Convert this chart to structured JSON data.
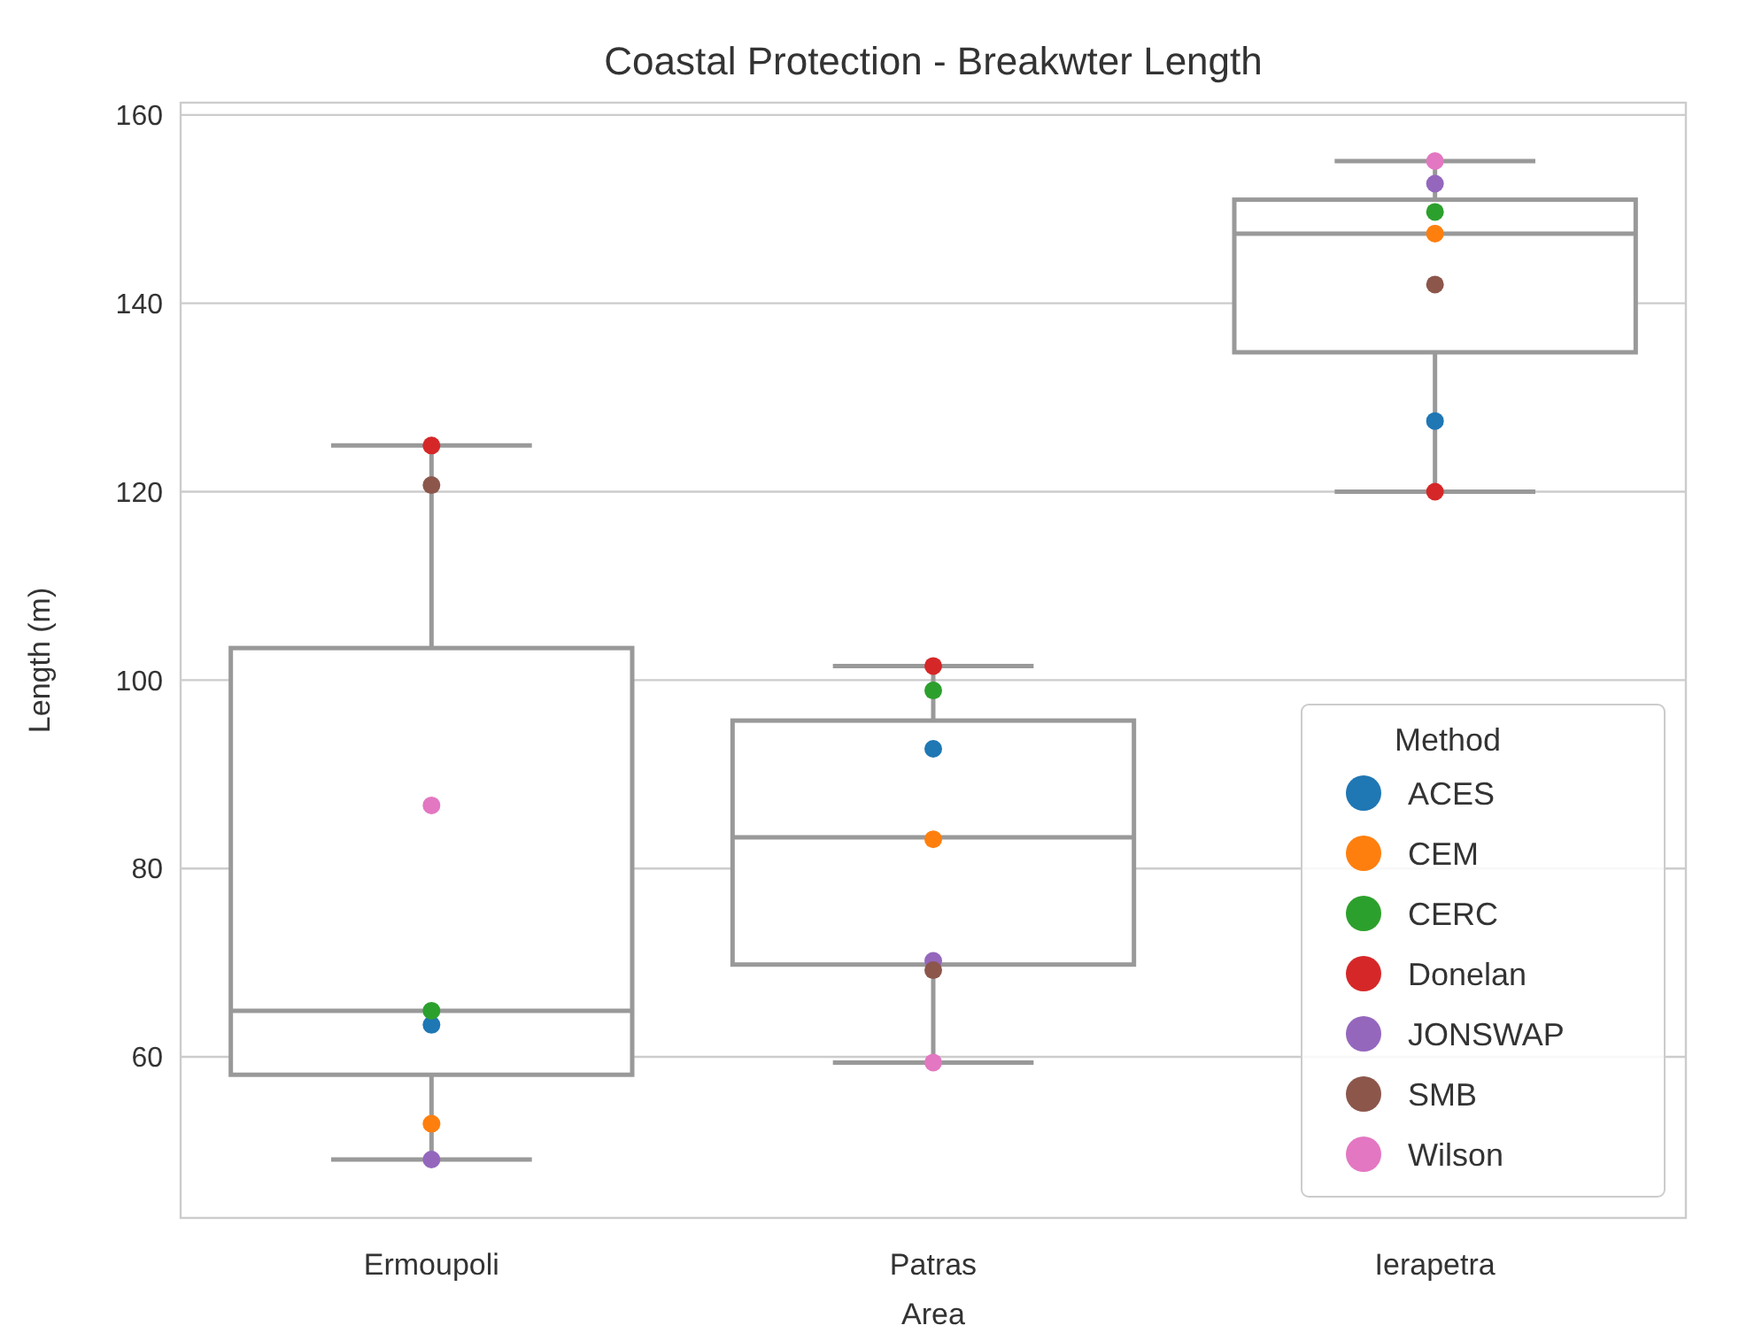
{
  "chart_data": {
    "type": "box",
    "title": "Coastal Protection - Breakwter Length",
    "xlabel": "Area",
    "ylabel": "Length (m)",
    "legend_title": "Method",
    "categories": [
      "Ermoupoli",
      "Patras",
      "Ierapetra"
    ],
    "ylim": [
      42.9,
      161.3
    ],
    "yticks": [
      60,
      80,
      100,
      120,
      140,
      160
    ],
    "grid": "y",
    "legend": "bottom right",
    "marker": "circle",
    "series": [
      {
        "type": "box",
        "color": "#999999",
        "boxes": [
          {
            "low": 49.1,
            "q1": 58.1,
            "median": 64.9,
            "q3": 103.4,
            "high": 124.9
          },
          {
            "low": 59.4,
            "q1": 69.8,
            "median": 83.3,
            "q3": 95.7,
            "high": 101.5
          },
          {
            "low": 120,
            "q1": 134.8,
            "median": 147.4,
            "q3": 151,
            "high": 155.1
          }
        ]
      },
      {
        "type": "scatter",
        "name": "ACES",
        "color": "#1f77b4",
        "x": [
          "Ermoupoli",
          "Patras",
          "Ierapetra"
        ],
        "values": [
          63.4,
          92.7,
          127.5
        ]
      },
      {
        "type": "scatter",
        "name": "CEM",
        "color": "#ff7f0e",
        "x": [
          "Ermoupoli",
          "Patras",
          "Ierapetra"
        ],
        "values": [
          52.9,
          83.1,
          147.4
        ]
      },
      {
        "type": "scatter",
        "name": "CERC",
        "color": "#2ca02c",
        "x": [
          "Ermoupoli",
          "Patras",
          "Ierapetra"
        ],
        "values": [
          64.9,
          98.9,
          149.7
        ]
      },
      {
        "type": "scatter",
        "name": "Donelan",
        "color": "#d62728",
        "x": [
          "Ermoupoli",
          "Patras",
          "Ierapetra"
        ],
        "values": [
          124.9,
          101.5,
          120
        ]
      },
      {
        "type": "scatter",
        "name": "JONSWAP",
        "color": "#9467bd",
        "x": [
          "Ermoupoli",
          "Patras",
          "Ierapetra"
        ],
        "values": [
          49.1,
          70.2,
          152.7
        ]
      },
      {
        "type": "scatter",
        "name": "SMB",
        "color": "#8c564b",
        "x": [
          "Ermoupoli",
          "Patras",
          "Ierapetra"
        ],
        "values": [
          120.7,
          69.2,
          142
        ]
      },
      {
        "type": "scatter",
        "name": "Wilson",
        "color": "#e377c2",
        "x": [
          "Ermoupoli",
          "Patras",
          "Ierapetra"
        ],
        "values": [
          86.7,
          59.4,
          155.1
        ]
      }
    ]
  }
}
